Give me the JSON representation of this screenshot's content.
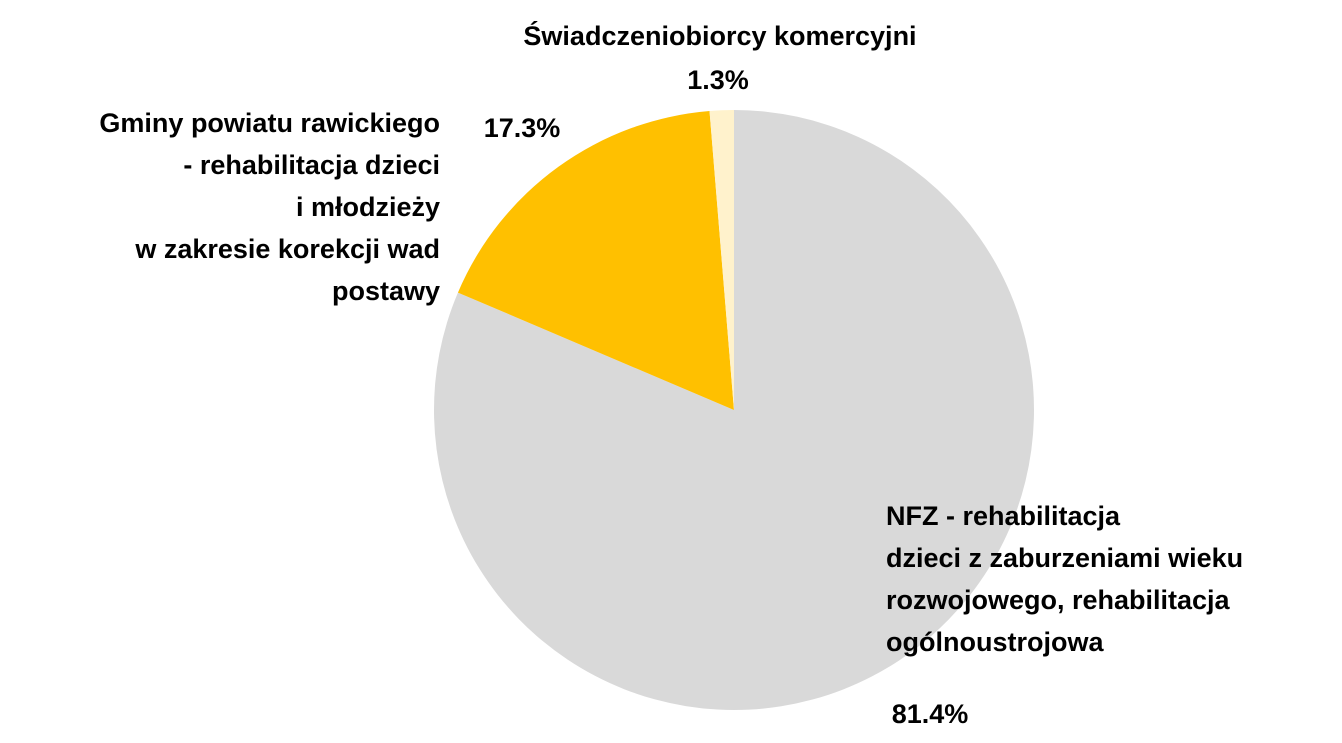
{
  "chart_data": {
    "type": "pie",
    "categories": [
      "NFZ - rehabilitacja\ndzieci z zaburzeniami wieku\nrozwojowego, rehabilitacja\nogólnoustrojowa",
      "Gminy powiatu rawickiego\n- rehabilitacja dzieci\ni młodzieży\nw zakresie korekcji wad\npostawy",
      "Świadczeniobiorcy komercyjni"
    ],
    "values": [
      81.4,
      17.3,
      1.3
    ],
    "value_labels": [
      "81.4%",
      "17.3%",
      "1.3%"
    ],
    "colors": [
      "#d9d9d9",
      "#ffc000",
      "#fff2cc"
    ]
  }
}
